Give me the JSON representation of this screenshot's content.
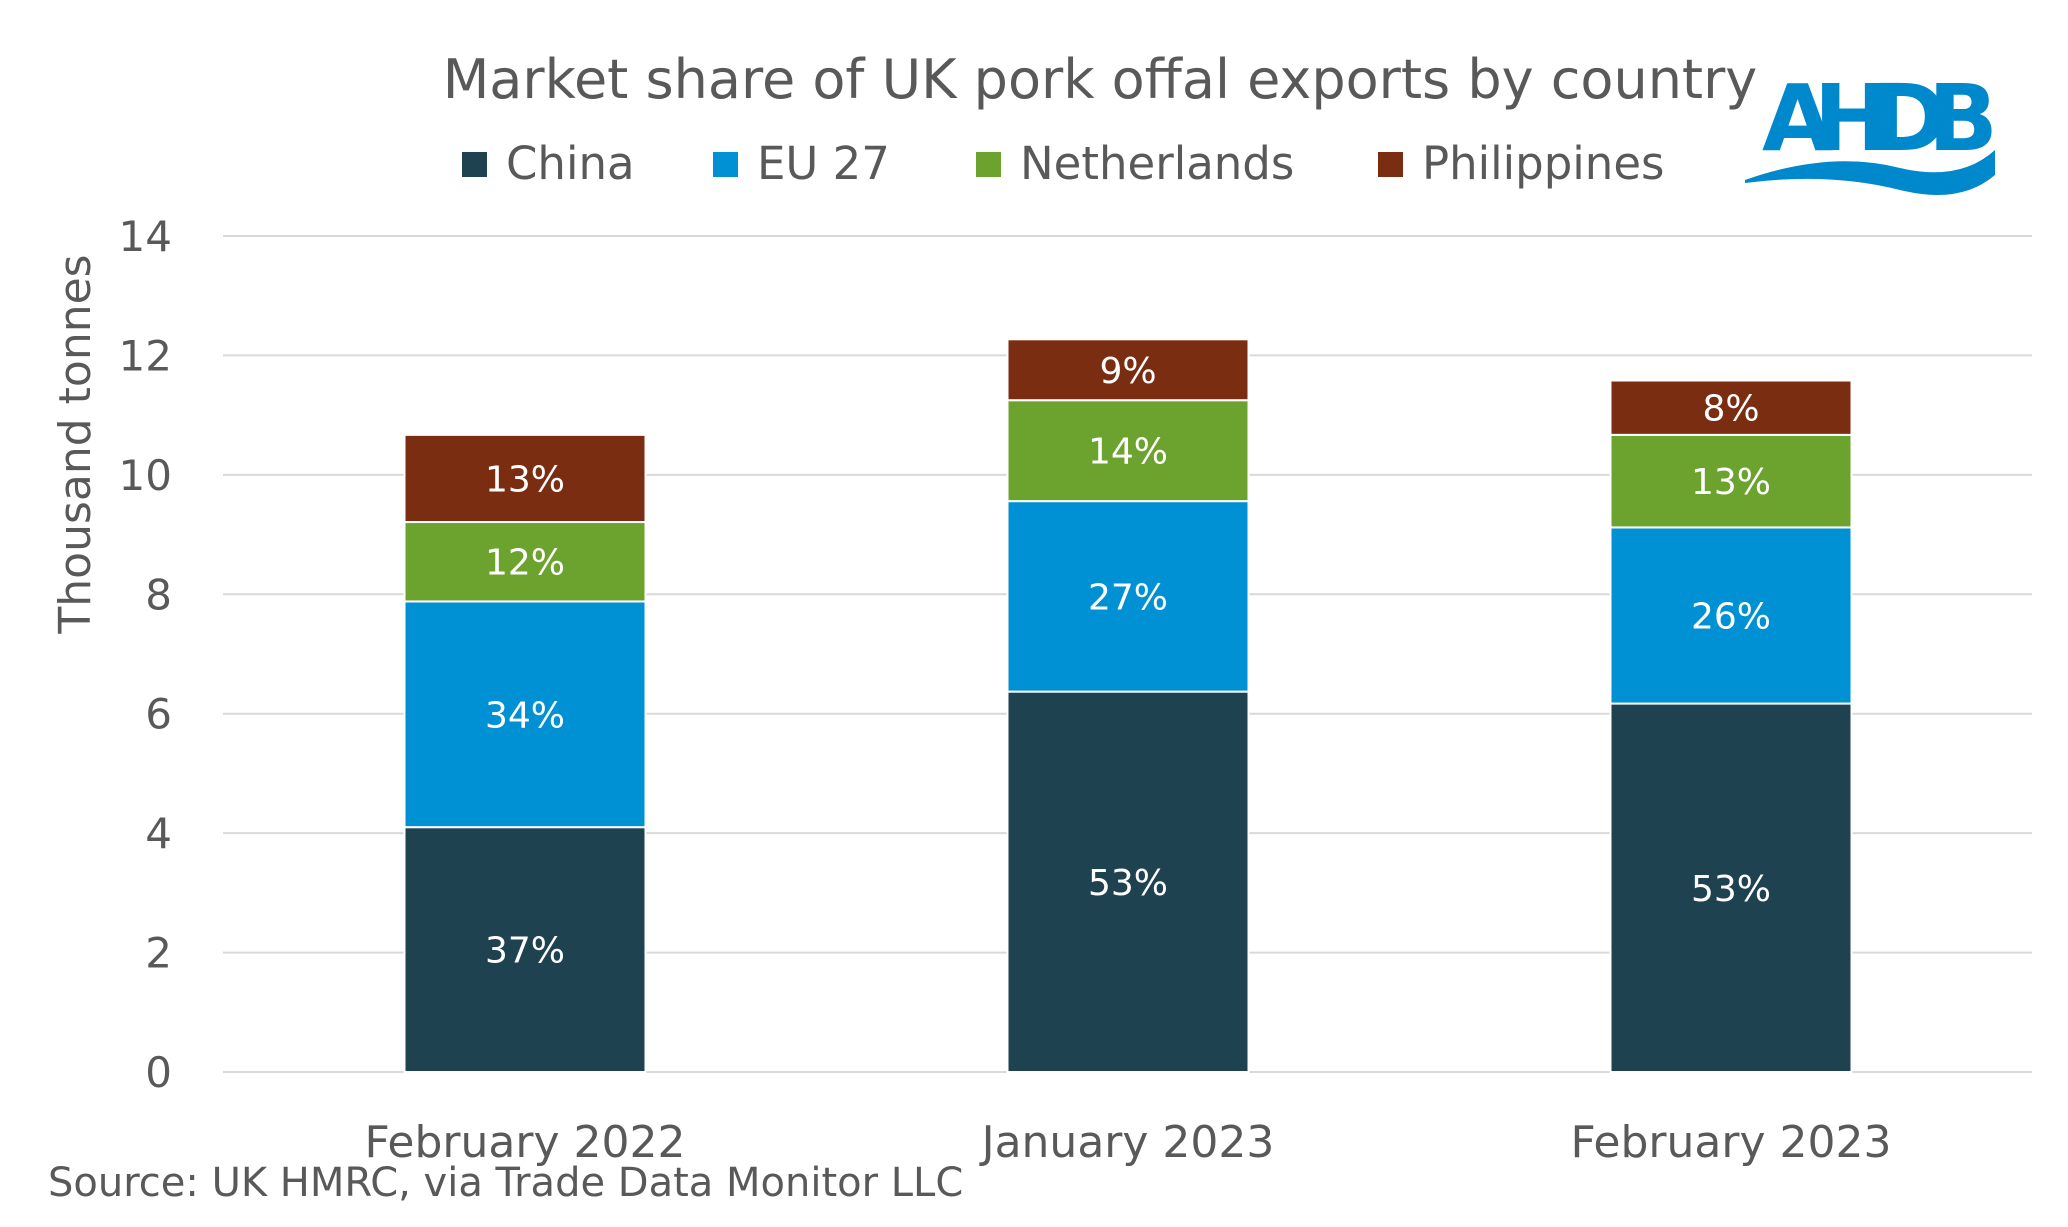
{
  "chart_data": {
    "type": "bar",
    "stacked": true,
    "title": "Market share of UK pork offal exports by country",
    "xlabel": "",
    "ylabel": "Thousand tonnes",
    "ylim": [
      0,
      14
    ],
    "yticks": [
      0,
      2,
      4,
      6,
      8,
      10,
      12,
      14
    ],
    "grid": true,
    "legend_position": "top",
    "categories": [
      "February 2022",
      "January 2023",
      "February 2023"
    ],
    "series": [
      {
        "name": "China",
        "color": "#1f4251",
        "values": [
          4.1,
          6.37,
          6.17
        ],
        "labels": [
          "37%",
          "53%",
          "53%"
        ]
      },
      {
        "name": "EU 27",
        "color": "#0090d4",
        "values": [
          3.78,
          3.19,
          2.95
        ],
        "labels": [
          "34%",
          "27%",
          "26%"
        ]
      },
      {
        "name": "Netherlands",
        "color": "#6ba32e",
        "values": [
          1.33,
          1.69,
          1.55
        ],
        "labels": [
          "12%",
          "14%",
          "13%"
        ]
      },
      {
        "name": "Philippines",
        "color": "#7b2d12",
        "values": [
          1.46,
          1.02,
          0.91
        ],
        "labels": [
          "13%",
          "9%",
          "8%"
        ]
      }
    ],
    "source": "Source: UK HMRC, via Trade Data Monitor LLC"
  },
  "logo": {
    "text": "AHDB",
    "color": "#0088cc"
  }
}
